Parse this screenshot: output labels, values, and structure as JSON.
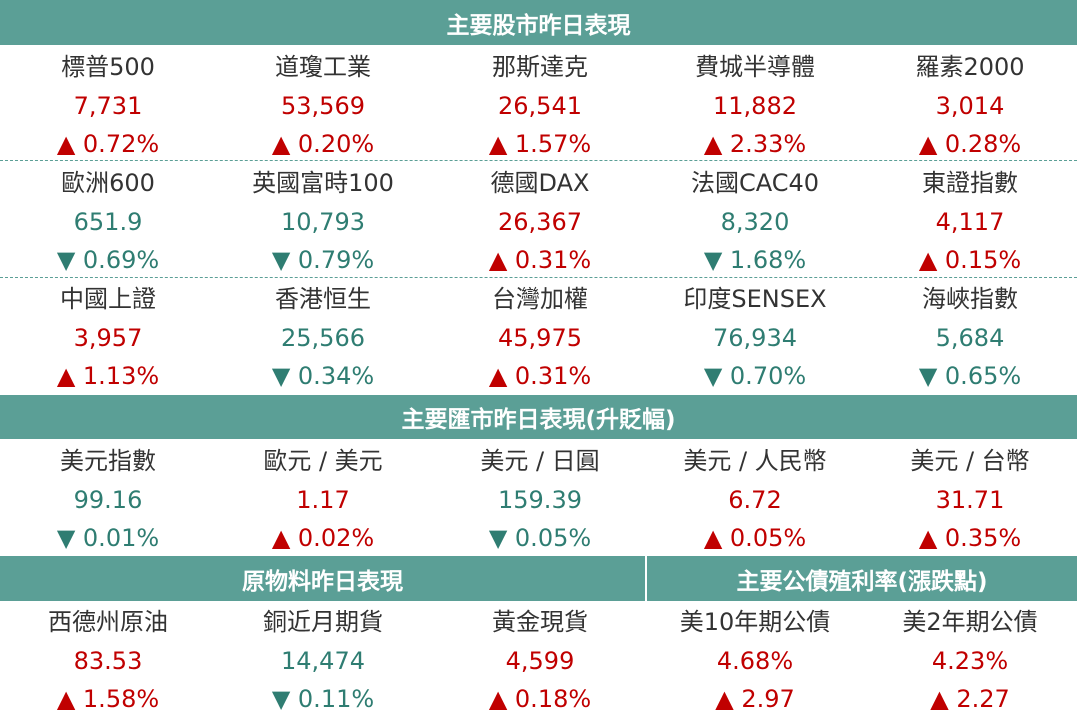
{
  "stocks": {
    "title": "主要股市昨日表現",
    "rows": [
      [
        {
          "name": "標普500",
          "value": "7,731",
          "change": "▲ 0.72%"
        },
        {
          "name": "道瓊工業",
          "value": "53,569",
          "change": "▲ 0.20%"
        },
        {
          "name": "那斯達克",
          "value": "26,541",
          "change": "▲ 1.57%"
        },
        {
          "name": "費城半導體",
          "value": "11,882",
          "change": "▲ 2.33%"
        },
        {
          "name": "羅素2000",
          "value": "3,014",
          "change": "▲ 0.28%"
        }
      ],
      [
        {
          "name": "歐洲600",
          "value": "651.9",
          "change": "▼ 0.69%"
        },
        {
          "name": "英國富時100",
          "value": "10,793",
          "change": "▼ 0.79%"
        },
        {
          "name": "德國DAX",
          "value": "26,367",
          "change": "▲ 0.31%"
        },
        {
          "name": "法國CAC40",
          "value": "8,320",
          "change": "▼ 1.68%"
        },
        {
          "name": "東證指數",
          "value": "4,117",
          "change": "▲ 0.15%"
        }
      ],
      [
        {
          "name": "中國上證",
          "value": "3,957",
          "change": "▲ 1.13%"
        },
        {
          "name": "香港恒生",
          "value": "25,566",
          "change": "▼ 0.34%"
        },
        {
          "name": "台灣加權",
          "value": "45,975",
          "change": "▲ 0.31%"
        },
        {
          "name": "印度SENSEX",
          "value": "76,934",
          "change": "▼ 0.70%"
        },
        {
          "name": "海峽指數",
          "value": "5,684",
          "change": "▼ 0.65%"
        }
      ]
    ]
  },
  "fx": {
    "title": "主要匯市昨日表現(升貶幅)",
    "items": [
      {
        "name": "美元指數",
        "value": "99.16",
        "change": "▼ 0.01%"
      },
      {
        "name": "歐元 / 美元",
        "value": "1.17",
        "change": "▲ 0.02%"
      },
      {
        "name": "美元 / 日圓",
        "value": "159.39",
        "change": "▼ 0.05%"
      },
      {
        "name": "美元 / 人民幣",
        "value": "6.72",
        "change": "▲ 0.05%"
      },
      {
        "name": "美元 / 台幣",
        "value": "31.71",
        "change": "▲ 0.35%"
      }
    ]
  },
  "commodities": {
    "title": "原物料昨日表現",
    "items": [
      {
        "name": "西德州原油",
        "value": "83.53",
        "change": "▲ 1.58%"
      },
      {
        "name": "銅近月期貨",
        "value": "14,474",
        "change": "▼ 0.11%"
      },
      {
        "name": "黃金現貨",
        "value": "4,599",
        "change": "▲ 0.18%"
      }
    ]
  },
  "bonds": {
    "title": "主要公債殖利率(漲跌點)",
    "items": [
      {
        "name": "美10年期公債",
        "value": "4.68%",
        "change": "▲ 2.97"
      },
      {
        "name": "美2年期公債",
        "value": "4.23%",
        "change": "▲ 2.27"
      }
    ]
  }
}
